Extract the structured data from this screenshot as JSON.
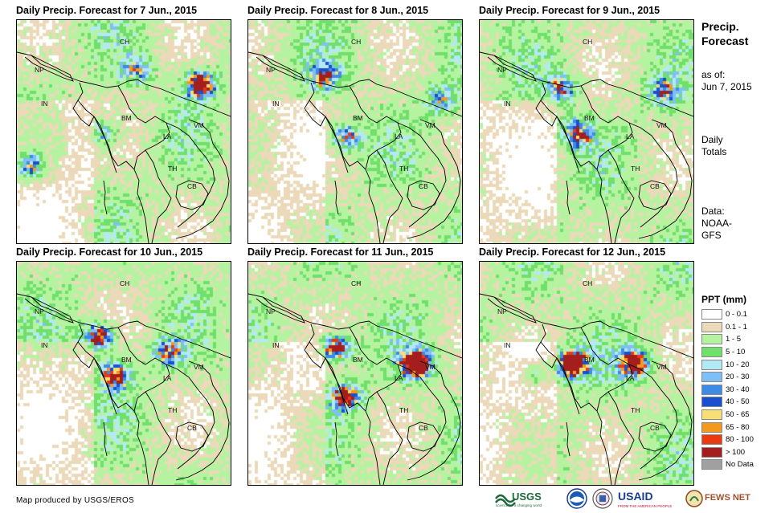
{
  "panels": [
    {
      "title": "Daily Precip. Forecast for 7 Jun., 2015",
      "seed": 7
    },
    {
      "title": "Daily Precip. Forecast for 8 Jun., 2015",
      "seed": 8
    },
    {
      "title": "Daily Precip. Forecast for 9 Jun., 2015",
      "seed": 9
    },
    {
      "title": "Daily Precip. Forecast for 10 Jun., 2015",
      "seed": 10
    },
    {
      "title": "Daily Precip. Forecast for 11 Jun., 2015",
      "seed": 11
    },
    {
      "title": "Daily Precip. Forecast for 12 Jun., 2015",
      "seed": 12
    }
  ],
  "country_labels": [
    "NP",
    "CH",
    "IN",
    "BM",
    "LA",
    "VM",
    "TH",
    "CB"
  ],
  "side": {
    "heading_line1": "Precip.",
    "heading_line2": "Forecast",
    "asof_line1": "as of:",
    "asof_line2": "Jun 7, 2015",
    "totals_line1": "Daily",
    "totals_line2": "Totals",
    "data_line1": "Data:",
    "data_line2": "NOAA-",
    "data_line3": "GFS"
  },
  "legend": {
    "title": "PPT (mm)",
    "items": [
      {
        "label": "0 - 0.1",
        "color": "#ffffff"
      },
      {
        "label": "0.1 - 1",
        "color": "#ecd9b9"
      },
      {
        "label": "1 - 5",
        "color": "#b6f3a1"
      },
      {
        "label": "5 - 10",
        "color": "#6fe06a"
      },
      {
        "label": "10 - 20",
        "color": "#b3e9f5"
      },
      {
        "label": "20 - 30",
        "color": "#7fbff7"
      },
      {
        "label": "30 - 40",
        "color": "#3c8be4"
      },
      {
        "label": "40 - 50",
        "color": "#1a4fd0"
      },
      {
        "label": "50 - 65",
        "color": "#f7df76"
      },
      {
        "label": "65 - 80",
        "color": "#f39a1c"
      },
      {
        "label": "80 - 100",
        "color": "#ea3a12"
      },
      {
        "label": "> 100",
        "color": "#a51e1e"
      },
      {
        "label": "No Data",
        "color": "#a0a0a0"
      }
    ]
  },
  "credit": "Map produced by USGS/EROS",
  "logos": {
    "usgs": "USGS",
    "usgs_tagline": "science for a changing world",
    "usaid": "USAID",
    "usaid_tagline": "FROM THE AMERICAN PEOPLE",
    "fewsnet": "FEWS NET"
  }
}
